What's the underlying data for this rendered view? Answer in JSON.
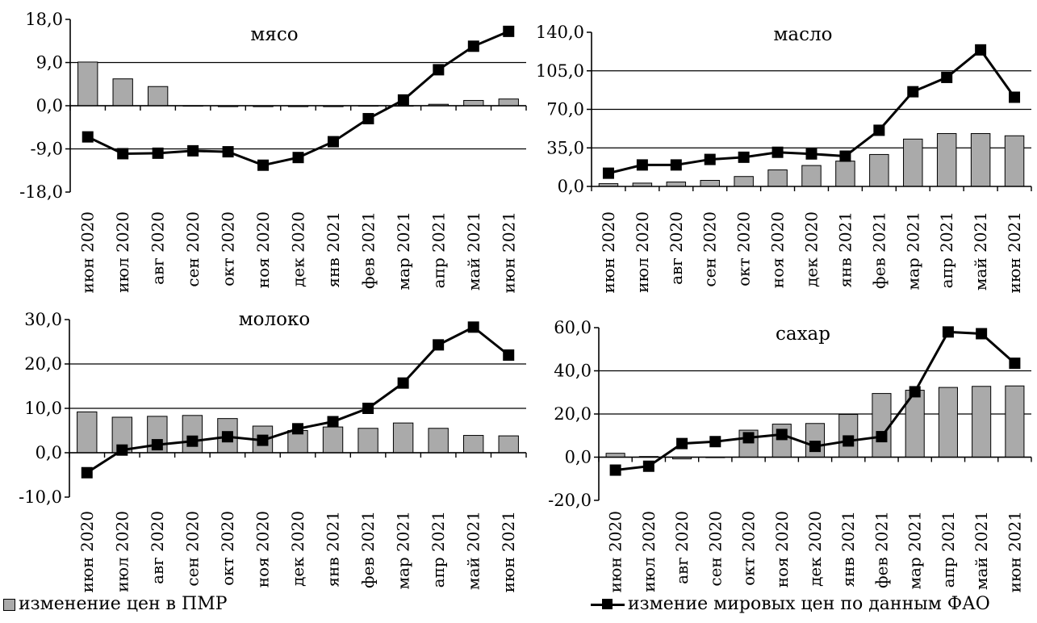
{
  "chart_data": [
    {
      "type": "bar+line",
      "title": "мясо",
      "categories": [
        "июн 2020",
        "июл 2020",
        "авг 2020",
        "сен 2020",
        "окт 2020",
        "ноя 2020",
        "дек 2020",
        "янв 2021",
        "фев 2021",
        "мар 2021",
        "апр 2021",
        "май 2021",
        "июн 2021"
      ],
      "yticks": [
        "18,0",
        "9,0",
        "0,0",
        "-9,0",
        "-18,0"
      ],
      "ylim": [
        -18,
        18
      ],
      "grid": "horizontal",
      "series": [
        {
          "name": "изменение цен в ПМР",
          "kind": "bar",
          "color": "#aaaaaa",
          "values": [
            9.1,
            5.6,
            4.0,
            0.0,
            -0.2,
            -0.2,
            -0.2,
            -0.2,
            0.0,
            0.0,
            0.3,
            1.1,
            1.4
          ]
        },
        {
          "name": "измение мировых цен по данным ФАО",
          "kind": "line",
          "color": "#000000",
          "values": [
            -6.5,
            -10.0,
            -9.9,
            -9.4,
            -9.6,
            -12.4,
            -10.8,
            -7.5,
            -2.7,
            1.2,
            7.5,
            12.4,
            15.5
          ]
        }
      ]
    },
    {
      "type": "bar+line",
      "title": "масло",
      "categories": [
        "июн 2020",
        "июл 2020",
        "авг 2020",
        "сен 2020",
        "окт 2020",
        "ноя 2020",
        "дек 2020",
        "янв 2021",
        "фев 2021",
        "мар 2021",
        "апр 2021",
        "май 2021",
        "июн 2021"
      ],
      "yticks": [
        "140,0",
        "105,0",
        "70,0",
        "35,0",
        "0,0"
      ],
      "ylim": [
        0,
        140
      ],
      "grid": "horizontal",
      "series": [
        {
          "name": "изменение цен в ПМР",
          "kind": "bar",
          "color": "#aaaaaa",
          "values": [
            2.5,
            3.0,
            4.0,
            5.5,
            9.0,
            15.0,
            19.0,
            23.0,
            29.0,
            43.0,
            48.0,
            48.0,
            46.0
          ]
        },
        {
          "name": "измение мировых цен по данным ФАО",
          "kind": "line",
          "color": "#000000",
          "values": [
            12.0,
            19.5,
            19.5,
            24.5,
            26.5,
            31.0,
            29.5,
            27.5,
            51.0,
            86.0,
            99.0,
            124.0,
            81.0
          ]
        }
      ]
    },
    {
      "type": "bar+line",
      "title": "молоко",
      "categories": [
        "июн 2020",
        "июл 2020",
        "авг 2020",
        "сен 2020",
        "окт 2020",
        "ноя 2020",
        "дек 2020",
        "янв 2021",
        "фев 2021",
        "мар 2021",
        "апр 2021",
        "май 2021",
        "июн 2021"
      ],
      "yticks": [
        "30,0",
        "20,0",
        "10,0",
        "0,0",
        "-10,0"
      ],
      "ylim": [
        -10,
        30
      ],
      "grid": "horizontal",
      "series": [
        {
          "name": "изменение цен в ПМР",
          "kind": "bar",
          "color": "#aaaaaa",
          "values": [
            9.2,
            8.0,
            8.2,
            8.4,
            7.7,
            6.0,
            5.0,
            5.8,
            5.5,
            6.7,
            5.5,
            3.9,
            3.8
          ]
        },
        {
          "name": "измение мировых цен по данным ФАО",
          "kind": "line",
          "color": "#000000",
          "values": [
            -4.5,
            0.6,
            1.8,
            2.6,
            3.6,
            2.8,
            5.4,
            7.0,
            10.0,
            15.7,
            24.3,
            28.3,
            22.0
          ]
        }
      ]
    },
    {
      "type": "bar+line",
      "title": "сахар",
      "categories": [
        "июн 2020",
        "июл 2020",
        "авг 2020",
        "сен 2020",
        "окт 2020",
        "ноя 2020",
        "дек 2020",
        "янв 2021",
        "фев 2021",
        "мар 2021",
        "апр 2021",
        "май 2021",
        "июн 2021"
      ],
      "yticks": [
        "60,0",
        "40,0",
        "20,0",
        "0,0",
        "-20,0"
      ],
      "ylim": [
        -20,
        60
      ],
      "grid": "horizontal",
      "series": [
        {
          "name": "изменение цен в ПМР",
          "kind": "bar",
          "color": "#aaaaaa",
          "values": [
            1.8,
            0.3,
            -0.8,
            0.0,
            12.5,
            15.3,
            15.6,
            19.8,
            29.5,
            31.0,
            32.3,
            32.8,
            33.0
          ]
        },
        {
          "name": "измение мировых цен по данным ФАО",
          "kind": "line",
          "color": "#000000",
          "values": [
            -6.0,
            -4.2,
            6.3,
            7.2,
            9.0,
            10.5,
            5.0,
            7.5,
            9.5,
            30.3,
            58.0,
            57.2,
            43.5
          ]
        }
      ]
    }
  ],
  "legend": {
    "bar_label": "изменение цен в ПМР",
    "line_label": "измение мировых цен по данным ФАО"
  }
}
